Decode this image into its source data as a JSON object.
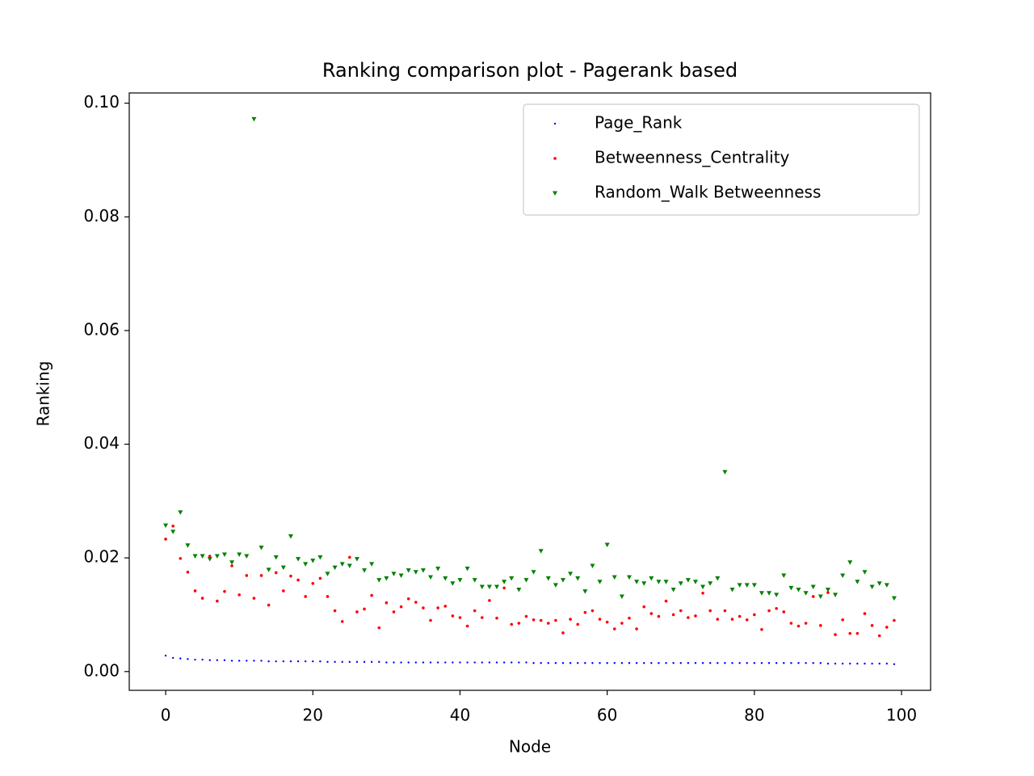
{
  "chart_data": {
    "type": "scatter",
    "title": "Ranking comparison plot - Pagerank based",
    "x_label": "Node",
    "y_label": "Ranking",
    "x": [
      0,
      1,
      2,
      3,
      4,
      5,
      6,
      7,
      8,
      9,
      10,
      11,
      12,
      13,
      14,
      15,
      16,
      17,
      18,
      19,
      20,
      21,
      22,
      23,
      24,
      25,
      26,
      27,
      28,
      29,
      30,
      31,
      32,
      33,
      34,
      35,
      36,
      37,
      38,
      39,
      40,
      41,
      42,
      43,
      44,
      45,
      46,
      47,
      48,
      49,
      50,
      51,
      52,
      53,
      54,
      55,
      56,
      57,
      58,
      59,
      60,
      61,
      62,
      63,
      64,
      65,
      66,
      67,
      68,
      69,
      70,
      71,
      72,
      73,
      74,
      75,
      76,
      77,
      78,
      79,
      80,
      81,
      82,
      83,
      84,
      85,
      86,
      87,
      88,
      89,
      90,
      91,
      92,
      93,
      94,
      95,
      96,
      97,
      98,
      99
    ],
    "series": [
      {
        "name": "Page_Rank",
        "color": "#0000ff",
        "marker": "point",
        "values": [
          0.0028,
          0.0024,
          0.0023,
          0.0022,
          0.0021,
          0.0021,
          0.002,
          0.002,
          0.002,
          0.0019,
          0.0019,
          0.0019,
          0.0019,
          0.0019,
          0.0018,
          0.0018,
          0.0018,
          0.0018,
          0.0018,
          0.0018,
          0.0018,
          0.0018,
          0.0017,
          0.0017,
          0.0017,
          0.0017,
          0.0017,
          0.0017,
          0.0017,
          0.0017,
          0.0016,
          0.0016,
          0.0016,
          0.0016,
          0.0016,
          0.0016,
          0.0016,
          0.0016,
          0.0016,
          0.0016,
          0.0016,
          0.0016,
          0.0016,
          0.0016,
          0.0016,
          0.0016,
          0.0016,
          0.0016,
          0.0016,
          0.0016,
          0.0015,
          0.0015,
          0.0015,
          0.0015,
          0.0015,
          0.0015,
          0.0015,
          0.0015,
          0.0015,
          0.0015,
          0.0015,
          0.0015,
          0.0015,
          0.0015,
          0.0015,
          0.0015,
          0.0015,
          0.0015,
          0.0015,
          0.0015,
          0.0015,
          0.0015,
          0.0015,
          0.0015,
          0.0015,
          0.0015,
          0.0015,
          0.0015,
          0.0015,
          0.0015,
          0.0015,
          0.0015,
          0.0015,
          0.0015,
          0.0015,
          0.0015,
          0.0015,
          0.0015,
          0.0015,
          0.0015,
          0.0014,
          0.0014,
          0.0014,
          0.0014,
          0.0014,
          0.0014,
          0.0014,
          0.0014,
          0.0014,
          0.0013
        ]
      },
      {
        "name": "Betweenness_Centrality",
        "color": "#ff0000",
        "marker": "point",
        "values": [
          0.0233,
          0.0256,
          0.0199,
          0.0175,
          0.0142,
          0.0129,
          0.0203,
          0.0124,
          0.0141,
          0.0186,
          0.0135,
          0.0169,
          0.0129,
          0.0169,
          0.0117,
          0.0174,
          0.0142,
          0.0168,
          0.0161,
          0.0132,
          0.0155,
          0.0164,
          0.0132,
          0.0107,
          0.0088,
          0.0201,
          0.0105,
          0.011,
          0.0134,
          0.0077,
          0.0121,
          0.0105,
          0.0114,
          0.0128,
          0.0122,
          0.0112,
          0.009,
          0.0112,
          0.0115,
          0.0098,
          0.0095,
          0.008,
          0.0107,
          0.0095,
          0.0125,
          0.0094,
          0.0147,
          0.0083,
          0.0085,
          0.0097,
          0.0091,
          0.009,
          0.0085,
          0.009,
          0.0068,
          0.0092,
          0.0083,
          0.0104,
          0.0107,
          0.0092,
          0.0087,
          0.0075,
          0.0085,
          0.0094,
          0.0075,
          0.0114,
          0.0102,
          0.0097,
          0.0124,
          0.01,
          0.0107,
          0.0095,
          0.0098,
          0.0138,
          0.0107,
          0.0092,
          0.0107,
          0.0092,
          0.0097,
          0.0091,
          0.01,
          0.0074,
          0.0107,
          0.0111,
          0.0105,
          0.0085,
          0.008,
          0.0085,
          0.0132,
          0.0081,
          0.0139,
          0.0065,
          0.0091,
          0.0067,
          0.0067,
          0.0102,
          0.0081,
          0.0063,
          0.0078,
          0.009
        ]
      },
      {
        "name": "Random_Walk Betweenness",
        "color": "#008000",
        "marker": "triangle_down",
        "values": [
          0.0257,
          0.0246,
          0.028,
          0.0222,
          0.0203,
          0.0203,
          0.0198,
          0.0203,
          0.0206,
          0.0192,
          0.0206,
          0.0203,
          0.0972,
          0.0218,
          0.0179,
          0.0201,
          0.0183,
          0.0238,
          0.0198,
          0.0189,
          0.0195,
          0.0201,
          0.0172,
          0.0183,
          0.0189,
          0.0186,
          0.0198,
          0.0178,
          0.0189,
          0.0161,
          0.0164,
          0.0172,
          0.0169,
          0.0178,
          0.0175,
          0.0178,
          0.0166,
          0.0181,
          0.0164,
          0.0155,
          0.0161,
          0.0181,
          0.0161,
          0.0149,
          0.0149,
          0.0149,
          0.0158,
          0.0164,
          0.0144,
          0.0161,
          0.0175,
          0.0212,
          0.0164,
          0.0152,
          0.0161,
          0.0172,
          0.0164,
          0.0141,
          0.0186,
          0.0158,
          0.0223,
          0.0166,
          0.0132,
          0.0166,
          0.0158,
          0.0155,
          0.0164,
          0.0158,
          0.0158,
          0.0144,
          0.0155,
          0.0161,
          0.0158,
          0.0149,
          0.0155,
          0.0164,
          0.0351,
          0.0144,
          0.0152,
          0.0152,
          0.0152,
          0.0138,
          0.0138,
          0.0135,
          0.0169,
          0.0147,
          0.0144,
          0.0138,
          0.0149,
          0.0132,
          0.0144,
          0.0135,
          0.0169,
          0.0192,
          0.0158,
          0.0175,
          0.0149,
          0.0155,
          0.0152,
          0.0129
        ]
      }
    ],
    "xlim": [
      -4.95,
      103.95
    ],
    "ylim": [
      -0.0033,
      0.1018
    ],
    "xticks": [
      0,
      20,
      40,
      60,
      80,
      100
    ],
    "yticks": [
      {
        "value": 0,
        "label": "0.00"
      },
      {
        "value": 0.02,
        "label": "0.02"
      },
      {
        "value": 0.04,
        "label": "0.04"
      },
      {
        "value": 0.06,
        "label": "0.06"
      },
      {
        "value": 0.08,
        "label": "0.08"
      },
      {
        "value": 0.1,
        "label": "0.10"
      }
    ],
    "grid": false,
    "legend": "upper right"
  }
}
